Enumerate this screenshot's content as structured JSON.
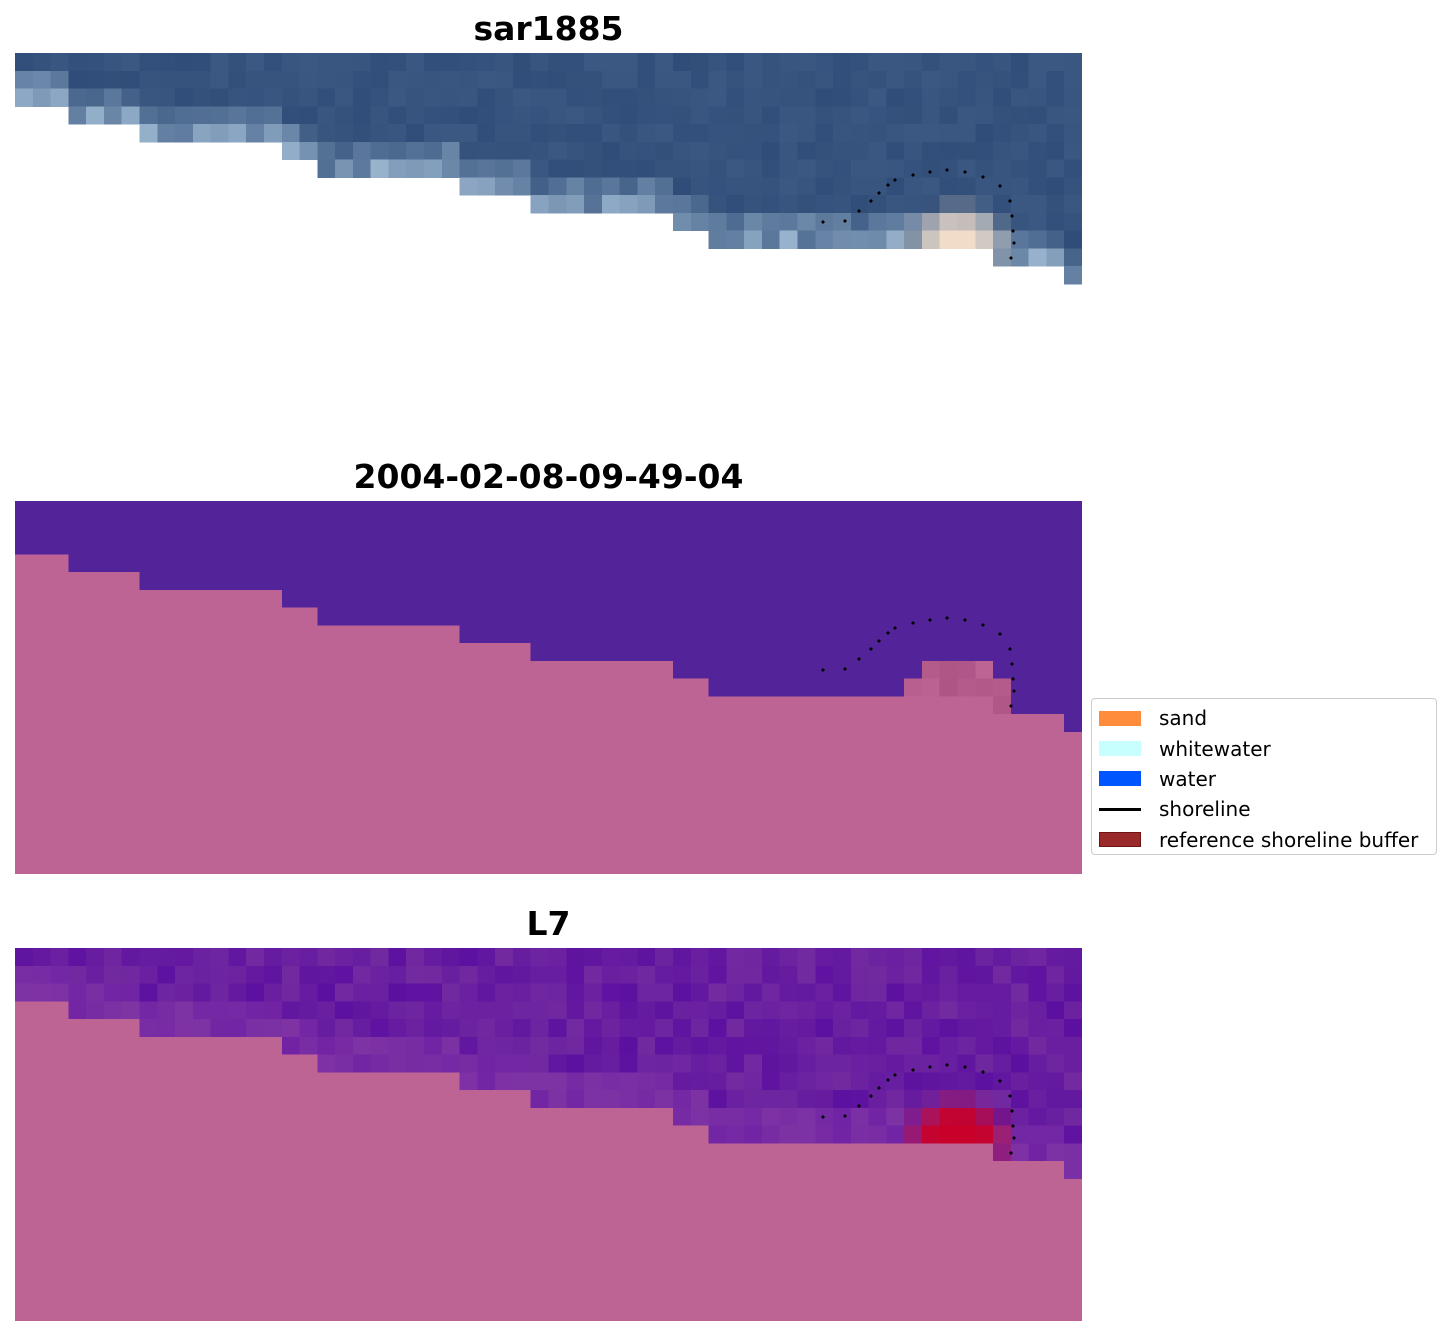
{
  "panels": [
    {
      "id": "rgb",
      "title": "sar1885"
    },
    {
      "id": "classified",
      "title": "2004-02-08-09-49-04"
    },
    {
      "id": "mndwi",
      "title": "L7"
    }
  ],
  "legend": {
    "items": [
      {
        "label": "sand",
        "kind": "patch",
        "color": "#ff8c3a"
      },
      {
        "label": "whitewater",
        "kind": "patch",
        "color": "#c7ffff"
      },
      {
        "label": "water",
        "kind": "patch",
        "color": "#0055ff"
      },
      {
        "label": "shoreline",
        "kind": "line",
        "color": "#000000"
      },
      {
        "label": "reference shoreline buffer",
        "kind": "patch",
        "color": "#9a2a2a",
        "edge": "#6e1414"
      }
    ]
  },
  "colors": {
    "land_mask": "#bd6495",
    "classified_water": "#53239a",
    "ocean_rgb": "#2f4d78",
    "mndwi_water": "#5c10a0",
    "buffer_red": "#c8002a"
  }
}
